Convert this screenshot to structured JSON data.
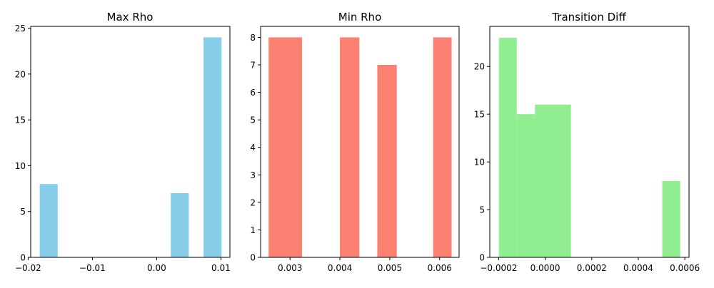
{
  "chart_data": [
    {
      "type": "bar",
      "title": "Max Rho",
      "color": "#87ceeb",
      "xlim": [
        -0.0196,
        0.0114
      ],
      "ylim": [
        0,
        25.2
      ],
      "xticks": [
        {
          "value": -0.02,
          "label": "−0.02"
        },
        {
          "value": -0.01,
          "label": "−0.01"
        },
        {
          "value": 0.0,
          "label": "0.00"
        },
        {
          "value": 0.01,
          "label": "0.01"
        }
      ],
      "yticks": [
        {
          "value": 0,
          "label": "0"
        },
        {
          "value": 5,
          "label": "5"
        },
        {
          "value": 10,
          "label": "10"
        },
        {
          "value": 15,
          "label": "15"
        },
        {
          "value": 20,
          "label": "20"
        },
        {
          "value": 25,
          "label": "25"
        }
      ],
      "bins": [
        {
          "x0": -0.0182,
          "x1": -0.0154,
          "count": 8
        },
        {
          "x0": 0.0022,
          "x1": 0.005,
          "count": 7
        },
        {
          "x0": 0.0073,
          "x1": 0.0101,
          "count": 24
        }
      ]
    },
    {
      "type": "bar",
      "title": "Min Rho",
      "color": "#fa8072",
      "xlim": [
        0.00241,
        0.00639
      ],
      "ylim": [
        0,
        8.4
      ],
      "xticks": [
        {
          "value": 0.003,
          "label": "0.003"
        },
        {
          "value": 0.004,
          "label": "0.004"
        },
        {
          "value": 0.005,
          "label": "0.005"
        },
        {
          "value": 0.006,
          "label": "0.006"
        }
      ],
      "yticks": [
        {
          "value": 0,
          "label": "0"
        },
        {
          "value": 1,
          "label": "1"
        },
        {
          "value": 2,
          "label": "2"
        },
        {
          "value": 3,
          "label": "3"
        },
        {
          "value": 4,
          "label": "4"
        },
        {
          "value": 5,
          "label": "5"
        },
        {
          "value": 6,
          "label": "6"
        },
        {
          "value": 7,
          "label": "7"
        },
        {
          "value": 8,
          "label": "8"
        }
      ],
      "bins": [
        {
          "x0": 0.00257,
          "x1": 0.00324,
          "count": 8
        },
        {
          "x0": 0.004,
          "x1": 0.00439,
          "count": 8
        },
        {
          "x0": 0.00475,
          "x1": 0.00514,
          "count": 7
        },
        {
          "x0": 0.00587,
          "x1": 0.00624,
          "count": 8
        }
      ]
    },
    {
      "type": "bar",
      "title": "Transition Diff",
      "color": "#90ee90",
      "xlim": [
        -0.000238,
        0.000618
      ],
      "ylim": [
        0,
        24.2
      ],
      "xticks": [
        {
          "value": -0.0002,
          "label": "−0.0002"
        },
        {
          "value": 0.0,
          "label": "0.0000"
        },
        {
          "value": 0.0002,
          "label": "0.0002"
        },
        {
          "value": 0.0004,
          "label": "0.0004"
        },
        {
          "value": 0.0006,
          "label": "0.0006"
        }
      ],
      "yticks": [
        {
          "value": 0,
          "label": "0"
        },
        {
          "value": 5,
          "label": "5"
        },
        {
          "value": 10,
          "label": "10"
        },
        {
          "value": 15,
          "label": "15"
        },
        {
          "value": 20,
          "label": "20"
        }
      ],
      "bins": [
        {
          "x0": -0.000199,
          "x1": -0.000122,
          "count": 23
        },
        {
          "x0": -0.000122,
          "x1": -4.4e-05,
          "count": 15
        },
        {
          "x0": -4.4e-05,
          "x1": 3.3e-05,
          "count": 16
        },
        {
          "x0": 3.3e-05,
          "x1": 0.000111,
          "count": 16
        },
        {
          "x0": 0.000503,
          "x1": 0.00058,
          "count": 8
        }
      ]
    }
  ]
}
